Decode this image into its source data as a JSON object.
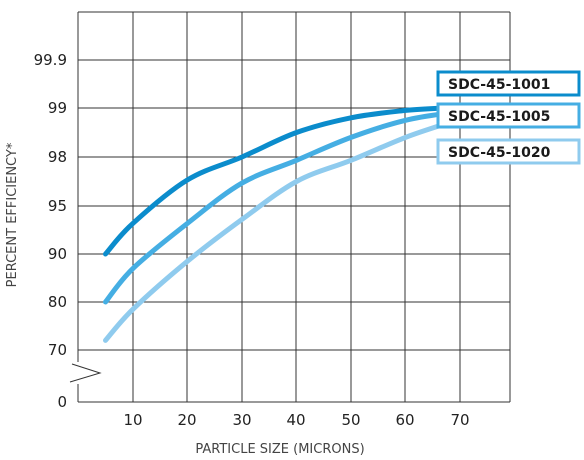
{
  "chart_data": {
    "type": "line",
    "title": "",
    "xlabel": "PARTICLE SIZE (MICRONS)",
    "ylabel": "PERCENT EFFICIENCY*",
    "x_ticks": [
      "10",
      "20",
      "30",
      "40",
      "50",
      "60",
      "70"
    ],
    "y_ticks": [
      "0",
      "70",
      "80",
      "90",
      "95",
      "98",
      "99",
      "99.9"
    ],
    "y_axis_note": "non-linear scale with axis break between 0 and 70",
    "xlim": [
      0,
      80
    ],
    "grid": true,
    "legend_position": "right, stacked near top",
    "series": [
      {
        "name": "SDC-45-1001",
        "color": "#0b8ccc",
        "x": [
          5,
          10,
          20,
          30,
          40,
          50,
          60,
          67
        ],
        "y": [
          90,
          93.2,
          96.6,
          98.0,
          98.5,
          98.8,
          98.95,
          99.0
        ]
      },
      {
        "name": "SDC-45-1005",
        "color": "#45aee3",
        "x": [
          5,
          10,
          20,
          30,
          40,
          50,
          60,
          68
        ],
        "y": [
          80,
          87.0,
          93.2,
          96.4,
          97.8,
          98.4,
          98.75,
          98.9
        ]
      },
      {
        "name": "SDC-45-1020",
        "color": "#8fcbee",
        "x": [
          5,
          10,
          20,
          30,
          40,
          50,
          60,
          68
        ],
        "y": [
          72,
          78.5,
          88.5,
          93.6,
          96.5,
          97.8,
          98.4,
          98.7
        ]
      }
    ]
  }
}
